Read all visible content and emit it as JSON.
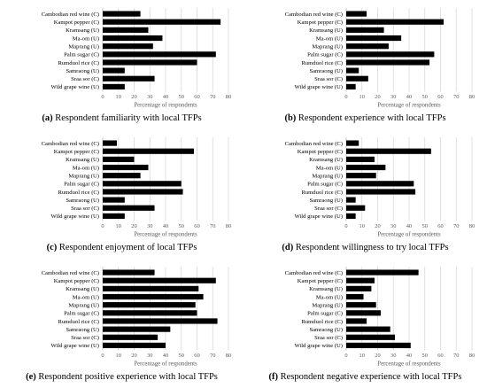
{
  "chart_data": [
    {
      "type": "bar",
      "orientation": "horizontal",
      "label": "(a)",
      "caption": "Respondent familiarity with local TFPs",
      "categories": [
        "Cambodian red wine (C)",
        "Kampot pepper (C)",
        "Kramsang (U)",
        "Ma-om (U)",
        "Maprang (U)",
        "Palm sugar (C)",
        "Rumduol rice (C)",
        "Samraong (U)",
        "Sraa sor (C)",
        "Wild grape wine (U)"
      ],
      "values": [
        24,
        75,
        29,
        38,
        32,
        72,
        60,
        14,
        33,
        14
      ],
      "xlabel": "Percentage of respondents",
      "xlim": [
        0,
        80
      ],
      "xticks": [
        "0",
        "10",
        "20",
        "30",
        "40",
        "50",
        "60",
        "70",
        "80"
      ],
      "grid": true
    },
    {
      "type": "bar",
      "orientation": "horizontal",
      "label": "(b)",
      "caption": "Respondent experience with local TFPs",
      "categories": [
        "Cambodian red wine (C)",
        "Kampot pepper (C)",
        "Kramsang (U)",
        "Ma-om (U)",
        "Maprang (U)",
        "Palm sugar (C)",
        "Rumduol rice (C)",
        "Samraong (U)",
        "Sraa sor (C)",
        "Wild grape wine (U)"
      ],
      "values": [
        13,
        62,
        24,
        35,
        27,
        56,
        53,
        8,
        14,
        6
      ],
      "xlabel": "Percentage of respondents",
      "xlim": [
        0,
        80
      ],
      "xticks": [
        "0",
        "10",
        "20",
        "30",
        "40",
        "50",
        "60",
        "70",
        "80"
      ],
      "grid": true
    },
    {
      "type": "bar",
      "orientation": "horizontal",
      "label": "(c)",
      "caption": "Respondent enjoyment of local TFPs",
      "categories": [
        "Cambodian red wine (C)",
        "Kampot pepper (C)",
        "Kramsang (U)",
        "Ma-om (U)",
        "Maprang (U)",
        "Palm sugar (C)",
        "Rumduol rice (C)",
        "Samraong (U)",
        "Sraa sor (C)",
        "Wild grape wine (U)"
      ],
      "values": [
        9,
        58,
        20,
        29,
        24,
        50,
        51,
        14,
        33,
        14
      ],
      "xlabel": "Percentage of respondents",
      "xlim": [
        0,
        80
      ],
      "xticks": [
        "0",
        "10",
        "20",
        "30",
        "40",
        "50",
        "60",
        "70",
        "80"
      ],
      "grid": true
    },
    {
      "type": "bar",
      "orientation": "horizontal",
      "label": "(d)",
      "caption": "Respondent willingness to try local TFPs",
      "categories": [
        "Cambodian red wine (C)",
        "Kampot pepper (C)",
        "Kramsang (U)",
        "Ma-om (U)",
        "Maprang (U)",
        "Palm sugar (C)",
        "Rumduol rice (C)",
        "Samraong (U)",
        "Sraa sor (C)",
        "Wild grape wine (U)"
      ],
      "values": [
        8,
        54,
        18,
        25,
        19,
        43,
        44,
        6,
        12,
        6
      ],
      "xlabel": "Percentage of respondents",
      "xlim": [
        0,
        80
      ],
      "xticks": [
        "0",
        "10",
        "20",
        "30",
        "40",
        "50",
        "60",
        "70",
        "80"
      ],
      "grid": true
    },
    {
      "type": "bar",
      "orientation": "horizontal",
      "label": "(e)",
      "caption": "Respondent positive experience with local TFPs",
      "categories": [
        "Cambodian red wine (C)",
        "Kampot pepper (C)",
        "Kramsang (U)",
        "Ma-om (U)",
        "Maprang (U)",
        "Palm sugar (C)",
        "Rumduol rice (C)",
        "Samraong (U)",
        "Sraa sor (C)",
        "Wild grape wine (U)"
      ],
      "values": [
        33,
        72,
        61,
        64,
        59,
        60,
        73,
        43,
        35,
        40
      ],
      "xlabel": "Percentage of respondents",
      "xlim": [
        0,
        80
      ],
      "xticks": [
        "0",
        "10",
        "20",
        "30",
        "40",
        "50",
        "60",
        "70",
        "80"
      ],
      "grid": true
    },
    {
      "type": "bar",
      "orientation": "horizontal",
      "label": "(f)",
      "caption": "Respondent negative experience with local TFPs",
      "categories": [
        "Cambodian red wine (C)",
        "Kampot pepper (C)",
        "Kramsang (U)",
        "Ma-om (U)",
        "Maprang (U)",
        "Palm sugar (C)",
        "Rumduol rice (C)",
        "Samraong (U)",
        "Sraa sor (C)",
        "Wild grape wine (U)"
      ],
      "values": [
        46,
        18,
        16,
        11,
        19,
        22,
        13,
        28,
        31,
        41
      ],
      "xlabel": "Percentage of respondents",
      "xlim": [
        0,
        80
      ],
      "xticks": [
        "0",
        "10",
        "20",
        "30",
        "40",
        "50",
        "60",
        "70",
        "80"
      ],
      "grid": true
    }
  ],
  "colors": {
    "bar": "#000000",
    "grid": "#d9d9d9",
    "text": "#000000",
    "tick": "#595959"
  }
}
